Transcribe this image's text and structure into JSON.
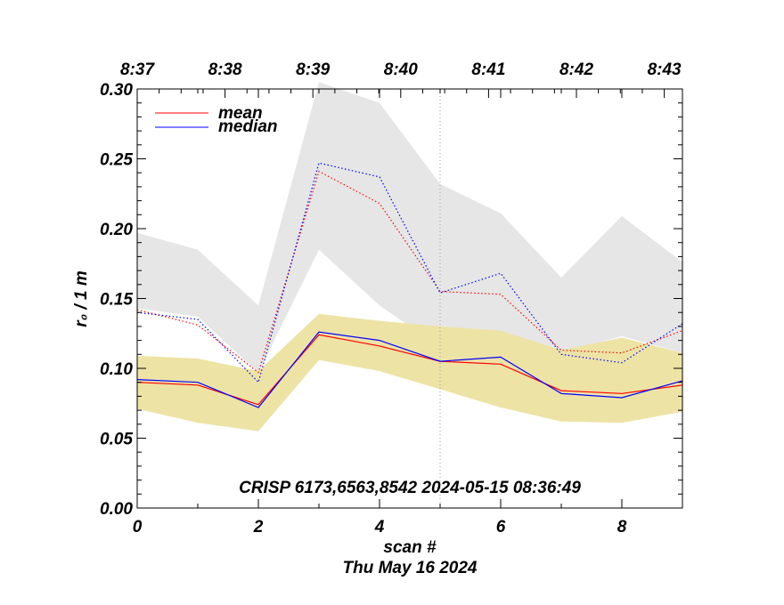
{
  "chart_data": {
    "type": "line",
    "xlabel": "scan #",
    "subtitle": "Thu May 16 2024",
    "ylabel": "r₀ / 1 m",
    "annotation": "CRISP 6173,6563,8542 2024-05-15 08:36:49",
    "xlim": [
      0,
      9
    ],
    "ylim": [
      0.0,
      0.3
    ],
    "x_ticks": [
      0,
      2,
      4,
      6,
      8
    ],
    "y_ticks": [
      0.0,
      0.05,
      0.1,
      0.15,
      0.2,
      0.25,
      0.3
    ],
    "y_tick_labels": [
      "0.00",
      "0.05",
      "0.10",
      "0.15",
      "0.20",
      "0.25",
      "0.30"
    ],
    "top_axis": {
      "labels": [
        "8:37",
        "8:38",
        "8:39",
        "8:40",
        "8:41",
        "8:42",
        "8:43"
      ],
      "scan_positions": [
        0,
        1.45,
        2.9,
        4.35,
        5.8,
        7.25,
        8.7
      ]
    },
    "vertical_marker_x": 5,
    "x": [
      0,
      1,
      2,
      3,
      4,
      5,
      6,
      7,
      8,
      9
    ],
    "bands": [
      {
        "name": "upper-range",
        "color": "#e6e6e6",
        "lower": [
          0.143,
          0.137,
          0.097,
          0.185,
          0.145,
          0.115,
          0.125,
          0.111,
          0.123,
          0.111
        ],
        "upper": [
          0.197,
          0.185,
          0.145,
          0.305,
          0.29,
          0.232,
          0.211,
          0.165,
          0.209,
          0.176
        ]
      },
      {
        "name": "lower-range",
        "color": "#ede3a5",
        "lower": [
          0.071,
          0.061,
          0.055,
          0.106,
          0.098,
          0.085,
          0.072,
          0.062,
          0.061,
          0.069
        ],
        "upper": [
          0.109,
          0.107,
          0.098,
          0.139,
          0.134,
          0.13,
          0.127,
          0.113,
          0.122,
          0.111
        ]
      }
    ],
    "series": [
      {
        "name": "mean",
        "color": "#ff0000",
        "style": "solid",
        "values": [
          0.09,
          0.088,
          0.074,
          0.124,
          0.116,
          0.105,
          0.103,
          0.084,
          0.082,
          0.088
        ]
      },
      {
        "name": "median",
        "color": "#0000ff",
        "style": "solid",
        "values": [
          0.092,
          0.09,
          0.072,
          0.126,
          0.12,
          0.105,
          0.108,
          0.082,
          0.079,
          0.091
        ]
      },
      {
        "name": "mean (upper)",
        "color": "#ff0000",
        "style": "dotted",
        "values": [
          0.142,
          0.131,
          0.097,
          0.241,
          0.218,
          0.155,
          0.153,
          0.113,
          0.111,
          0.127
        ]
      },
      {
        "name": "median (upper)",
        "color": "#0000ff",
        "style": "dotted",
        "values": [
          0.14,
          0.135,
          0.09,
          0.247,
          0.237,
          0.154,
          0.168,
          0.11,
          0.104,
          0.132
        ]
      }
    ],
    "legend": [
      {
        "label": "mean",
        "color": "#ff0000"
      },
      {
        "label": "median",
        "color": "#0000ff"
      }
    ]
  }
}
